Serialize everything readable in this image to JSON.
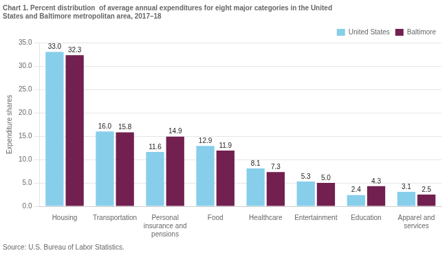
{
  "chart_data": {
    "type": "bar",
    "title": "Chart 1. Percent distribution  of average annual expenditures for eight major categories in the United\nStates and Baltimore metropolitan area, 2017–18",
    "y_label": "Expenditure shares",
    "annotations": [
      "Source: U.S. Bureau of Labor Statistics."
    ],
    "categories": [
      "Housing",
      "Transportation",
      "Personal\ninsurance and\npensions",
      "Food",
      "Healthcare",
      "Entertainment",
      "Education",
      "Apparel and\nservices"
    ],
    "series": [
      {
        "name": "United States",
        "color": "#87CEEB",
        "values": [
          33.0,
          16.0,
          11.6,
          12.9,
          8.1,
          5.3,
          2.4,
          3.1
        ],
        "value_labels": [
          "33.0",
          "16.0",
          "11.6",
          "12.9",
          "8.1",
          "5.3",
          "2.4",
          "3.1"
        ]
      },
      {
        "name": "Baltimore",
        "color": "#722050",
        "values": [
          32.3,
          15.8,
          14.9,
          11.9,
          7.3,
          5.0,
          4.3,
          2.5
        ],
        "value_labels": [
          "32.3",
          "15.8",
          "14.9",
          "11.9",
          "7.3",
          "5.0",
          "4.3",
          "2.5"
        ]
      }
    ],
    "ylim": [
      0,
      35
    ],
    "yticks": [
      {
        "value": 0,
        "label": "0.0"
      },
      {
        "value": 5,
        "label": "5.0"
      },
      {
        "value": 10,
        "label": "10.0"
      },
      {
        "value": 15,
        "label": "15.0"
      },
      {
        "value": 20,
        "label": "20.0"
      },
      {
        "value": 25,
        "label": "25.0"
      },
      {
        "value": 30,
        "label": "30.0"
      },
      {
        "value": 35,
        "label": "35.0"
      }
    ],
    "grid": true,
    "legend": "upper right",
    "data_labels": true
  }
}
